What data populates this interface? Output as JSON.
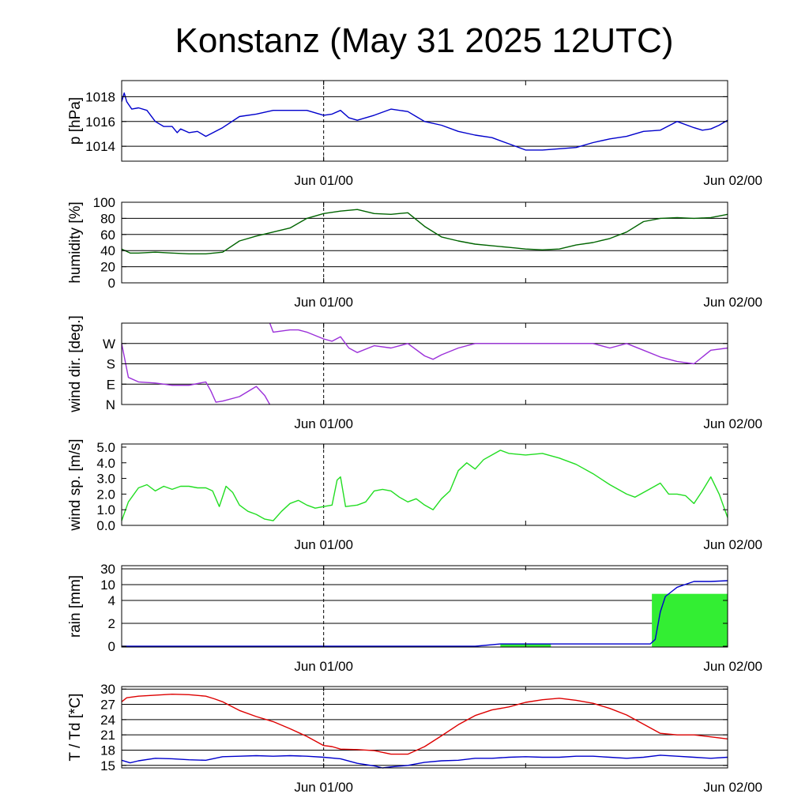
{
  "title": "Konstanz (May 31 2025 12UTC)",
  "chart_data": [
    {
      "type": "line",
      "ylabel": "p [hPa]",
      "ylim": [
        1012.8,
        1019.3
      ],
      "grid": true,
      "x_tick_labels": [
        "Jun 01/00",
        "Jun 02/00"
      ],
      "xlim": [
        0,
        36
      ],
      "yticks": [
        {
          "value": 1018,
          "label": "1018"
        },
        {
          "value": 1016,
          "label": "1016"
        },
        {
          "value": 1014,
          "label": "1014"
        }
      ],
      "series": [
        {
          "color": "#0000cc",
          "x": [
            0,
            0.15,
            0.3,
            0.6,
            1,
            1.5,
            2,
            2.5,
            3,
            3.3,
            3.5,
            4,
            4.5,
            5,
            6,
            7,
            8,
            9,
            10,
            11,
            12,
            12.5,
            13,
            13.5,
            14,
            15,
            16,
            17,
            17.5,
            18,
            19,
            20,
            21,
            22,
            23,
            24,
            25,
            26,
            27,
            28,
            29,
            30,
            31,
            32,
            33,
            34,
            34.5,
            35,
            35.5,
            36
          ],
          "y": [
            1017.6,
            1018.3,
            1017.6,
            1017.0,
            1017.1,
            1016.9,
            1016.0,
            1015.6,
            1015.6,
            1015.1,
            1015.4,
            1015.1,
            1015.2,
            1014.8,
            1015.5,
            1016.4,
            1016.6,
            1016.9,
            1016.9,
            1016.9,
            1016.5,
            1016.6,
            1016.9,
            1016.3,
            1016.1,
            1016.5,
            1017.0,
            1016.8,
            1016.4,
            1016.0,
            1015.7,
            1015.2,
            1014.9,
            1014.7,
            1014.2,
            1013.7,
            1013.7,
            1013.8,
            1013.9,
            1014.3,
            1014.6,
            1014.8,
            1015.2,
            1015.3,
            1016.0,
            1015.5,
            1015.3,
            1015.4,
            1015.7,
            1016.1
          ]
        }
      ]
    },
    {
      "type": "line",
      "ylabel": "humidity [%]",
      "ylim": [
        0,
        100
      ],
      "grid": true,
      "x_tick_labels": [
        "Jun 01/00",
        "Jun 02/00"
      ],
      "xlim": [
        0,
        36
      ],
      "yticks": [
        {
          "value": 100,
          "label": "100"
        },
        {
          "value": 80,
          "label": "80"
        },
        {
          "value": 60,
          "label": "60"
        },
        {
          "value": 40,
          "label": "40"
        },
        {
          "value": 20,
          "label": "20"
        },
        {
          "value": 0,
          "label": "0"
        }
      ],
      "series": [
        {
          "color": "#006400",
          "x": [
            0,
            0.5,
            1,
            2,
            3,
            4,
            5,
            6,
            7,
            8,
            9,
            10,
            11,
            12,
            13,
            14,
            15,
            16,
            17,
            18,
            19,
            20,
            21,
            22,
            23,
            24,
            25,
            26,
            27,
            28,
            29,
            30,
            31,
            32,
            33,
            34,
            35,
            36
          ],
          "y": [
            42,
            37,
            37,
            38,
            37,
            36,
            36,
            38,
            52,
            58,
            63,
            68,
            80,
            86,
            89,
            91,
            86,
            85,
            87,
            70,
            57,
            52,
            48,
            46,
            44,
            42,
            41,
            42,
            47,
            50,
            55,
            63,
            76,
            80,
            81,
            80,
            81,
            85
          ]
        }
      ]
    },
    {
      "type": "line",
      "ylabel": "wind dir. [deg.]",
      "ylim": [
        0,
        360
      ],
      "grid": true,
      "x_tick_labels": [
        "Jun 01/00",
        "Jun 02/00"
      ],
      "xlim": [
        0,
        36
      ],
      "yticks": [
        {
          "value": 270,
          "label": "W"
        },
        {
          "value": 180,
          "label": "S"
        },
        {
          "value": 90,
          "label": "E"
        },
        {
          "value": 0,
          "label": "N"
        }
      ],
      "series": [
        {
          "color": "#9b30d9",
          "x": [
            0,
            0.4,
            1,
            2,
            3,
            4,
            5,
            5.3,
            5.6,
            6,
            7,
            8,
            8.5,
            8.8
          ],
          "y": [
            270,
            120,
            100,
            95,
            85,
            85,
            100,
            60,
            10,
            15,
            35,
            80,
            40,
            0
          ]
        },
        {
          "color": "#9b30d9",
          "x": [
            8.8,
            9,
            10,
            10.5,
            11,
            12,
            12.5,
            13,
            13.5,
            14,
            15,
            16,
            17,
            18,
            18.5,
            19,
            20,
            21,
            22,
            23,
            24,
            25,
            26,
            27,
            28,
            29,
            30,
            31,
            32,
            33,
            34,
            35,
            36
          ],
          "y": [
            360,
            320,
            330,
            330,
            320,
            290,
            280,
            300,
            250,
            230,
            260,
            250,
            270,
            215,
            200,
            220,
            250,
            270,
            270,
            270,
            270,
            270,
            270,
            270,
            270,
            250,
            270,
            240,
            210,
            190,
            180,
            240,
            250
          ]
        }
      ]
    },
    {
      "type": "line",
      "ylabel": "wind sp. [m/s]",
      "ylim": [
        0,
        5.2
      ],
      "grid": false,
      "x_tick_labels": [
        "Jun 01/00",
        "Jun 02/00"
      ],
      "xlim": [
        0,
        36
      ],
      "yticks": [
        {
          "value": 5.0,
          "label": "5.0"
        },
        {
          "value": 4.0,
          "label": "4.0"
        },
        {
          "value": 3.0,
          "label": "3.0"
        },
        {
          "value": 2.0,
          "label": "2.0"
        },
        {
          "value": 1.0,
          "label": "1.0"
        },
        {
          "value": 0.0,
          "label": "0.0"
        }
      ],
      "series": [
        {
          "color": "#22dd22",
          "x": [
            0,
            0.4,
            1,
            1.5,
            2,
            2.5,
            3,
            3.5,
            4,
            4.5,
            5,
            5.4,
            5.8,
            6.2,
            6.6,
            7,
            7.5,
            8,
            8.5,
            9,
            9.5,
            10,
            10.5,
            11,
            11.5,
            12,
            12.5,
            12.8,
            13,
            13.3,
            14,
            14.5,
            15,
            15.5,
            16,
            16.5,
            17,
            17.5,
            18,
            18.5,
            19,
            19.5,
            20,
            20.5,
            21,
            21.5,
            22,
            22.5,
            23,
            24,
            25,
            26,
            27,
            28,
            29,
            30,
            30.5,
            31,
            31.5,
            32,
            32.5,
            33,
            33.5,
            34,
            34.5,
            35,
            35.5,
            36
          ],
          "y": [
            0.3,
            1.5,
            2.4,
            2.6,
            2.2,
            2.5,
            2.3,
            2.5,
            2.5,
            2.4,
            2.4,
            2.2,
            1.2,
            2.5,
            2.1,
            1.3,
            0.9,
            0.7,
            0.4,
            0.3,
            0.9,
            1.4,
            1.6,
            1.3,
            1.1,
            1.2,
            1.3,
            2.9,
            3.1,
            1.2,
            1.3,
            1.5,
            2.2,
            2.3,
            2.2,
            1.8,
            1.5,
            1.7,
            1.3,
            1.0,
            1.7,
            2.2,
            3.5,
            4.0,
            3.6,
            4.2,
            4.5,
            4.8,
            4.6,
            4.5,
            4.6,
            4.3,
            3.9,
            3.3,
            2.6,
            2.0,
            1.8,
            2.1,
            2.4,
            2.7,
            2.0,
            2.0,
            1.9,
            1.4,
            2.2,
            3.1,
            2.0,
            0.5
          ]
        }
      ]
    },
    {
      "type": "area",
      "ylabel": "rain [mm]",
      "grid": true,
      "x_tick_labels": [
        "Jun 01/00",
        "Jun 02/00"
      ],
      "xlim": [
        0,
        36
      ],
      "scale_note": "non-linear axis",
      "yticks": [
        {
          "value": 30,
          "label": "30"
        },
        {
          "value": 10,
          "label": "10"
        },
        {
          "value": 4,
          "label": "4"
        },
        {
          "value": 2,
          "label": "2"
        },
        {
          "value": 0,
          "label": "0"
        }
      ],
      "bars": [
        {
          "x_start": 22.5,
          "x_end": 25.5,
          "value": 0.2,
          "color": "#33ee33"
        },
        {
          "x_start": 31.5,
          "x_end": 36,
          "value": 6.5,
          "color": "#33ee33"
        }
      ],
      "series": [
        {
          "color": "#0000cc",
          "x": [
            0,
            21.0,
            22.5,
            25.5,
            31.4,
            31.7,
            32.0,
            32.3,
            32.6,
            33.0,
            34.0,
            35.0,
            36.0
          ],
          "y": [
            0,
            0,
            0.2,
            0.2,
            0.2,
            0.6,
            3.0,
            5.5,
            7.0,
            9.0,
            14,
            14,
            15
          ]
        }
      ]
    },
    {
      "type": "line",
      "ylabel": "T / Td [*C]",
      "ylim": [
        14.5,
        30.5
      ],
      "grid": true,
      "x_tick_labels": [
        "Jun 01/00",
        "Jun 02/00"
      ],
      "xlim": [
        0,
        36
      ],
      "yticks": [
        {
          "value": 30,
          "label": "30"
        },
        {
          "value": 27,
          "label": "27"
        },
        {
          "value": 24,
          "label": "24"
        },
        {
          "value": 21,
          "label": "21"
        },
        {
          "value": 18,
          "label": "18"
        },
        {
          "value": 15,
          "label": "15"
        }
      ],
      "series": [
        {
          "color": "#dd0000",
          "x": [
            0,
            0.3,
            1,
            2,
            3,
            4,
            5,
            5.5,
            6,
            7,
            8,
            9,
            10,
            11,
            12,
            12.5,
            13,
            14,
            15,
            16,
            17,
            18,
            19,
            20,
            21,
            22,
            23,
            24,
            25,
            26,
            27,
            28,
            29,
            30,
            31,
            32,
            33,
            34,
            35,
            36
          ],
          "y": [
            27.5,
            28.3,
            28.6,
            28.8,
            29.0,
            28.9,
            28.6,
            28.1,
            27.5,
            25.8,
            24.6,
            23.6,
            22.2,
            20.7,
            18.9,
            18.7,
            18.2,
            18.1,
            17.9,
            17.2,
            17.2,
            18.7,
            20.8,
            23.0,
            24.8,
            25.9,
            26.5,
            27.4,
            27.9,
            28.2,
            27.8,
            27.2,
            26.2,
            24.9,
            23.1,
            21.3,
            21.0,
            21.0,
            20.6,
            20.2
          ]
        },
        {
          "color": "#0000cc",
          "x": [
            0,
            0.5,
            1,
            2,
            3,
            4,
            5,
            6,
            7,
            8,
            9,
            10,
            11,
            12,
            13,
            14,
            15,
            15.5,
            16,
            17,
            18,
            19,
            20,
            21,
            22,
            23,
            24,
            25,
            26,
            27,
            28,
            29,
            30,
            31,
            32,
            33,
            34,
            35,
            36
          ],
          "y": [
            16.0,
            15.5,
            15.9,
            16.4,
            16.3,
            16.1,
            16.0,
            16.7,
            16.8,
            16.9,
            16.8,
            16.9,
            16.8,
            16.6,
            16.3,
            15.4,
            14.9,
            14.5,
            14.7,
            15.0,
            15.6,
            15.9,
            16.0,
            16.4,
            16.4,
            16.6,
            16.7,
            16.6,
            16.6,
            16.8,
            16.8,
            16.6,
            16.4,
            16.6,
            17.0,
            16.8,
            16.6,
            16.4,
            16.6
          ]
        }
      ]
    }
  ]
}
